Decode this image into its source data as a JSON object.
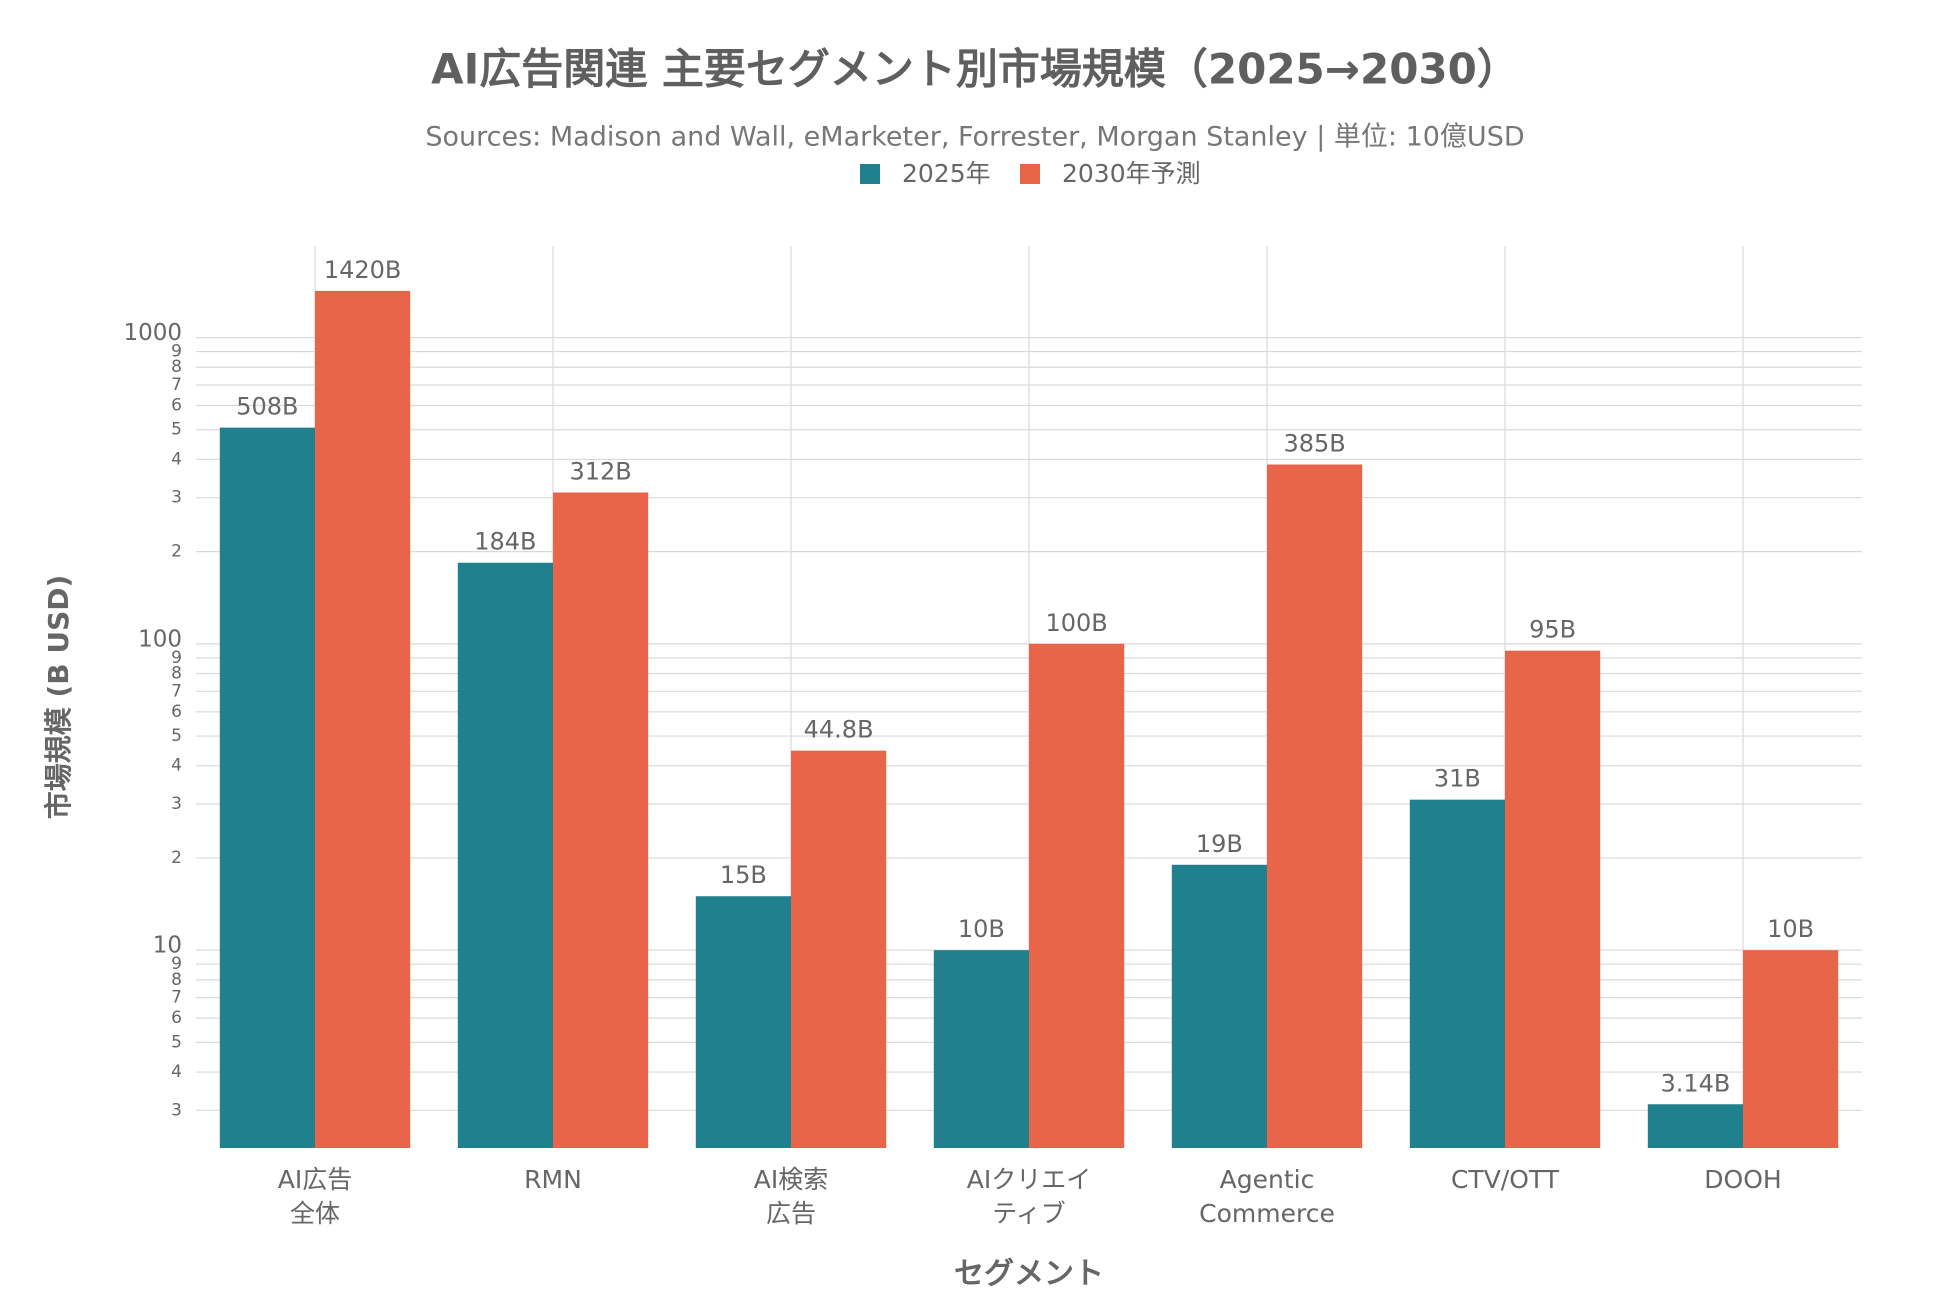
{
  "chart_data": {
    "type": "bar",
    "title": "AI広告関連 主要セグメント別市場規模（2025→2030）",
    "subtitle": "Sources: Madison and Wall, eMarketer, Forrester, Morgan Stanley | 単位: 10億USD",
    "x_label": "セグメント",
    "y_label": "市場規模 (B USD)",
    "categories": [
      [
        "AI広告",
        "全体"
      ],
      [
        "RMN"
      ],
      [
        "AI検索",
        "広告"
      ],
      [
        "AIクリエイ",
        "ティブ"
      ],
      [
        "Agentic",
        "Commerce"
      ],
      [
        "CTV/OTT"
      ],
      [
        "DOOH"
      ]
    ],
    "series": [
      {
        "name": "2025年",
        "color": "#21808d",
        "values": [
          508,
          184,
          15,
          10,
          19,
          31,
          3.14
        ],
        "value_labels": [
          "508B",
          "184B",
          "15B",
          "10B",
          "19B",
          "31B",
          "3.14B"
        ]
      },
      {
        "name": "2030年予測",
        "color": "#e8654a",
        "values": [
          1420,
          312,
          44.8,
          100,
          385,
          95,
          10
        ],
        "value_labels": [
          "1420B",
          "312B",
          "44.8B",
          "100B",
          "385B",
          "95B",
          "10B"
        ]
      }
    ],
    "log_scale": true,
    "ylim": [
      2.26,
      1990
    ],
    "yticks": [
      3,
      4,
      5,
      6,
      7,
      8,
      9,
      10,
      {
        "value": 20,
        "label": "2"
      },
      {
        "value": 30,
        "label": "3"
      },
      {
        "value": 40,
        "label": "4"
      },
      {
        "value": 50,
        "label": "5"
      },
      {
        "value": 60,
        "label": "6"
      },
      {
        "value": 70,
        "label": "7"
      },
      {
        "value": 80,
        "label": "8"
      },
      {
        "value": 90,
        "label": "9"
      },
      100,
      {
        "value": 200,
        "label": "2"
      },
      {
        "value": 300,
        "label": "3"
      },
      {
        "value": 400,
        "label": "4"
      },
      {
        "value": 500,
        "label": "5"
      },
      {
        "value": 600,
        "label": "6"
      },
      {
        "value": 700,
        "label": "7"
      },
      {
        "value": 800,
        "label": "8"
      },
      {
        "value": 900,
        "label": "9"
      },
      1000
    ],
    "grid": true
  }
}
